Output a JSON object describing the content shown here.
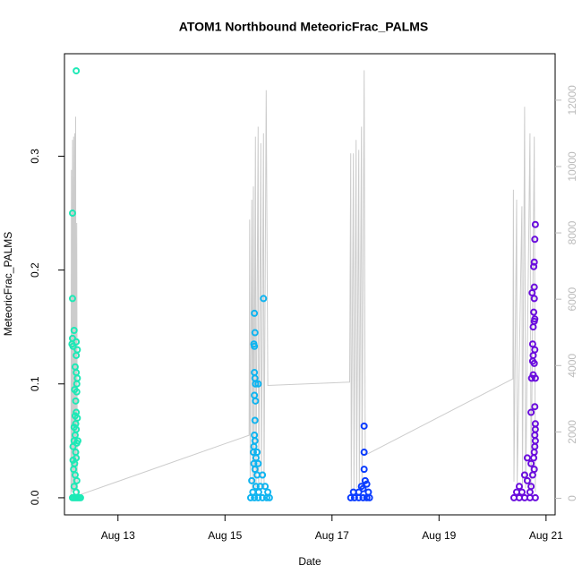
{
  "chart_data": {
    "type": "scatter",
    "title": "ATOM1 Northbound MeteoricFrac_PALMS",
    "x_label": "Date",
    "y_label": "MeteoricFrac_PALMS",
    "xlim": [
      12.0,
      21.17
    ],
    "xticks": [
      {
        "value": 13,
        "label": "Aug 13"
      },
      {
        "value": 15,
        "label": "Aug 15"
      },
      {
        "value": 17,
        "label": "Aug 17"
      },
      {
        "value": 19,
        "label": "Aug 19"
      },
      {
        "value": 21,
        "label": "Aug 21"
      }
    ],
    "ylim": [
      -0.015,
      0.39
    ],
    "yticks": [
      {
        "value": 0,
        "label": "0.0"
      },
      0.1,
      0.2,
      0.3
    ],
    "y2lim": [
      -500,
      13400
    ],
    "y2ticks": [
      0,
      2000,
      4000,
      6000,
      8000,
      10000,
      12000
    ],
    "y2color": "#bbbbbb",
    "series": [
      {
        "type": "line",
        "axis": "y2",
        "color": "#cccccc",
        "x": [
          12.12,
          12.13,
          12.135,
          12.15,
          12.155,
          12.17,
          12.175,
          12.19,
          12.195,
          12.21,
          12.215,
          12.23,
          12.24,
          12.28,
          15.45,
          15.46,
          15.47,
          15.5,
          15.51,
          15.53,
          15.54,
          15.57,
          15.58,
          15.62,
          15.63,
          15.67,
          15.68,
          15.72,
          15.73,
          15.77,
          15.8,
          17.33,
          17.35,
          17.36,
          17.4,
          17.41,
          17.45,
          17.46,
          17.5,
          17.51,
          17.55,
          17.56,
          17.6,
          17.62,
          20.38,
          20.39,
          20.4,
          20.45,
          20.46,
          20.55,
          20.56,
          20.6,
          20.62,
          20.7,
          20.72,
          20.78,
          20.8
        ],
        "values": [
          0,
          9900,
          200,
          10800,
          200,
          10900,
          200,
          11000,
          300,
          11500,
          300,
          8300,
          200,
          100,
          1900,
          8400,
          500,
          9000,
          300,
          9400,
          300,
          10900,
          300,
          11200,
          300,
          10700,
          300,
          11000,
          300,
          12300,
          3400,
          3500,
          10400,
          200,
          10400,
          200,
          10800,
          300,
          10500,
          300,
          11200,
          300,
          12900,
          1300,
          3600,
          9300,
          500,
          9000,
          400,
          8800,
          300,
          11800,
          300,
          11000,
          300,
          10900,
          200
        ]
      },
      {
        "color": "#1de9b6",
        "x": [
          12.15,
          12.15,
          12.14,
          12.15,
          12.16,
          12.18,
          12.22,
          12.22,
          12.22,
          12.24,
          12.2,
          12.22,
          12.24,
          12.23,
          12.19,
          12.23,
          12.21,
          12.22,
          12.2,
          12.24,
          12.21,
          12.18,
          12.22,
          12.2,
          12.16,
          12.18,
          12.23,
          12.25,
          12.21,
          12.16,
          12.19,
          12.22,
          12.17,
          12.2,
          12.23,
          12.18,
          12.22,
          12.15,
          12.18,
          12.21,
          12.24,
          12.27,
          12.3
        ],
        "values": [
          0.25,
          0.175,
          0.135,
          0.14,
          0.133,
          0.147,
          0.375,
          0.137,
          0.125,
          0.13,
          0.115,
          0.11,
          0.105,
          0.1,
          0.095,
          0.093,
          0.085,
          0.075,
          0.072,
          0.07,
          0.065,
          0.062,
          0.06,
          0.055,
          0.045,
          0.05,
          0.048,
          0.05,
          0.04,
          0.033,
          0.03,
          0.035,
          0.025,
          0.02,
          0.015,
          0.01,
          0.005,
          0,
          0,
          0,
          0,
          0,
          0
        ]
      },
      {
        "color": "#0fb4f0",
        "x": [
          15.72,
          15.55,
          15.56,
          15.54,
          15.55,
          15.55,
          15.56,
          15.57,
          15.55,
          15.62,
          15.57,
          15.56,
          15.55,
          15.56,
          15.54,
          15.53,
          15.6,
          15.58,
          15.54,
          15.62,
          15.56,
          15.6,
          15.7,
          15.5,
          15.58,
          15.66,
          15.75,
          15.52,
          15.63,
          15.8,
          15.48,
          15.55,
          15.62,
          15.7,
          15.78,
          15.83
        ],
        "values": [
          0.175,
          0.162,
          0.145,
          0.135,
          0.133,
          0.11,
          0.105,
          0.1,
          0.09,
          0.1,
          0.085,
          0.068,
          0.055,
          0.05,
          0.045,
          0.04,
          0.04,
          0.035,
          0.03,
          0.03,
          0.025,
          0.02,
          0.02,
          0.015,
          0.01,
          0.01,
          0.01,
          0.005,
          0.005,
          0.005,
          0,
          0,
          0,
          0,
          0,
          0
        ]
      },
      {
        "color": "#0a3cff",
        "x": [
          17.6,
          17.6,
          17.6,
          17.62,
          17.55,
          17.65,
          17.4,
          17.5,
          17.58,
          17.68,
          17.35,
          17.42,
          17.5,
          17.58,
          17.65,
          17.7
        ],
        "values": [
          0.063,
          0.04,
          0.025,
          0.015,
          0.01,
          0.012,
          0.005,
          0.005,
          0.008,
          0.005,
          0,
          0,
          0,
          0,
          0,
          0
        ]
      },
      {
        "color": "#6a0ddd",
        "x": [
          20.8,
          20.79,
          20.78,
          20.77,
          20.78,
          20.74,
          20.78,
          20.77,
          20.79,
          20.78,
          20.76,
          20.75,
          20.79,
          20.76,
          20.75,
          20.78,
          20.76,
          20.73,
          20.8,
          20.72,
          20.79,
          20.8,
          20.8,
          20.79,
          20.8,
          20.79,
          20.78,
          20.77,
          20.65,
          20.72,
          20.78,
          20.6,
          20.75,
          20.5,
          20.65,
          20.72,
          20.45,
          20.55,
          20.7,
          20.4,
          20.5,
          20.6,
          20.7,
          20.8
        ],
        "values": [
          0.24,
          0.227,
          0.207,
          0.203,
          0.185,
          0.18,
          0.175,
          0.163,
          0.157,
          0.155,
          0.15,
          0.135,
          0.13,
          0.125,
          0.12,
          0.118,
          0.108,
          0.105,
          0.105,
          0.075,
          0.08,
          0.065,
          0.06,
          0.055,
          0.05,
          0.045,
          0.04,
          0.035,
          0.035,
          0.03,
          0.025,
          0.02,
          0.02,
          0.01,
          0.015,
          0.01,
          0.005,
          0.005,
          0.005,
          0,
          0,
          0,
          0,
          0
        ]
      }
    ]
  }
}
